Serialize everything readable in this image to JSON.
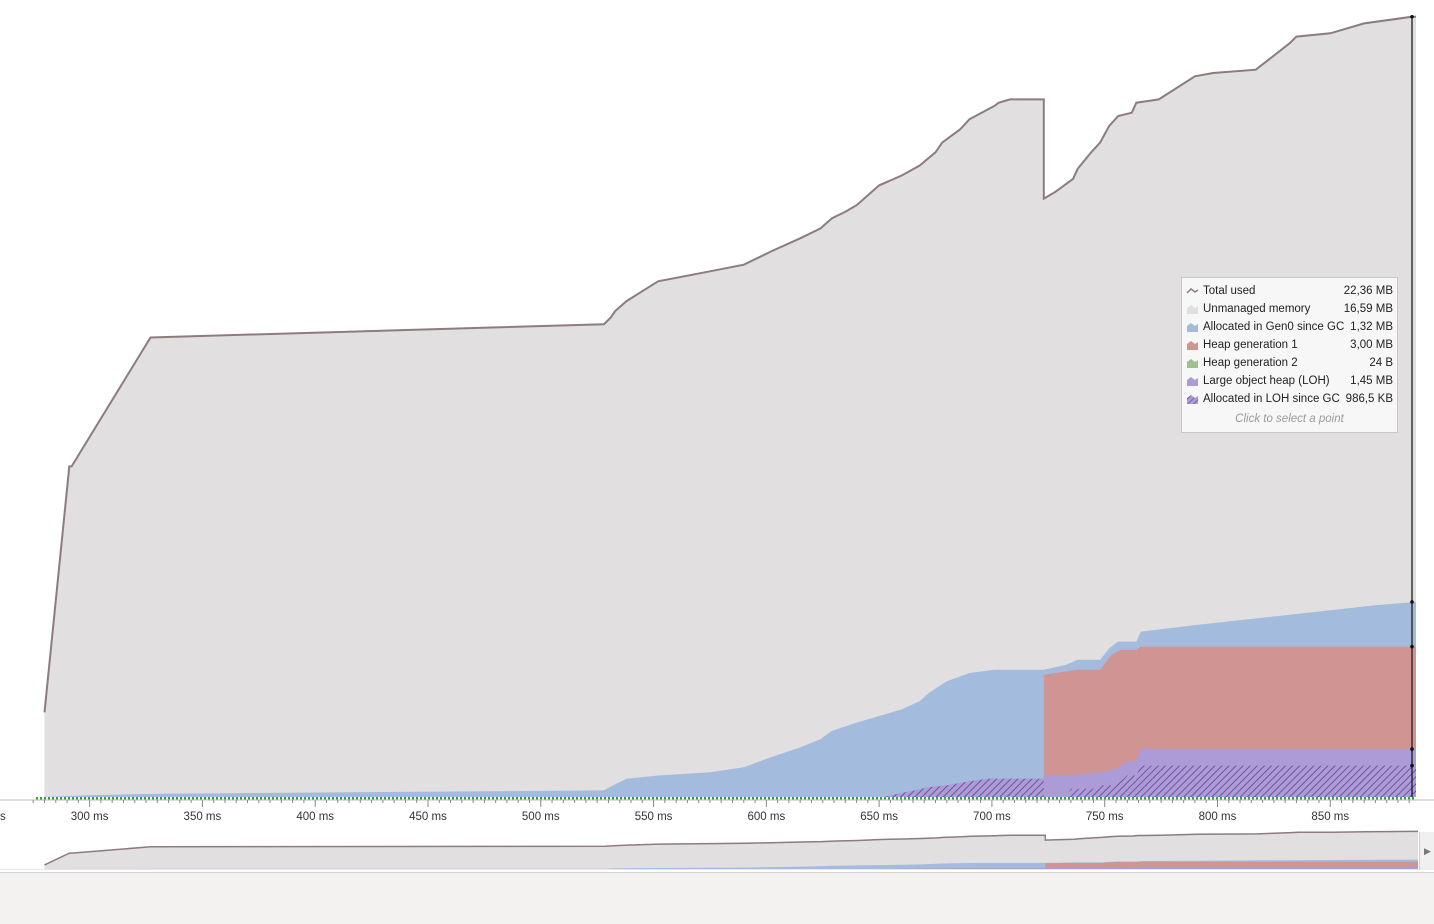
{
  "chart_data": {
    "type": "area",
    "title": "",
    "xlabel": "",
    "ylabel": "",
    "x_unit": "ms",
    "xlim": [
      278,
      888
    ],
    "ylim": [
      0,
      23.2
    ],
    "x_ticks": [
      300,
      350,
      400,
      450,
      500,
      550,
      600,
      650,
      700,
      750,
      800,
      850
    ],
    "x_tick_labels": [
      "300 ms",
      "350 ms",
      "400 ms",
      "450 ms",
      "500 ms",
      "550 ms",
      "600 ms",
      "650 ms",
      "700 ms",
      "750 ms",
      "800 ms",
      "850 ms"
    ],
    "left_edge_label": "s",
    "grid": false,
    "legend_position": "right",
    "total_used": {
      "name": "Total used",
      "color": "#8c7c7e",
      "points": [
        [
          280,
          2.56
        ],
        [
          291,
          10.0
        ],
        [
          292,
          10.0
        ],
        [
          327,
          13.9
        ],
        [
          528,
          14.3
        ],
        [
          531,
          14.5
        ],
        [
          533,
          14.7
        ],
        [
          538,
          15.0
        ],
        [
          545,
          15.3
        ],
        [
          552,
          15.6
        ],
        [
          575,
          15.9
        ],
        [
          590,
          16.1
        ],
        [
          602,
          16.5
        ],
        [
          615,
          16.9
        ],
        [
          624,
          17.2
        ],
        [
          629,
          17.5
        ],
        [
          635,
          17.7
        ],
        [
          640,
          17.9
        ],
        [
          645,
          18.2
        ],
        [
          650,
          18.5
        ],
        [
          660,
          18.8
        ],
        [
          668,
          19.1
        ],
        [
          675,
          19.5
        ],
        [
          678,
          19.8
        ],
        [
          686,
          20.2
        ],
        [
          690,
          20.5
        ],
        [
          701,
          20.9
        ],
        [
          703,
          21.0
        ],
        [
          708,
          21.1
        ],
        [
          723,
          21.1
        ],
        [
          723,
          18.1
        ],
        [
          728,
          18.3
        ],
        [
          736,
          18.7
        ],
        [
          738,
          19.0
        ],
        [
          744,
          19.5
        ],
        [
          748,
          19.8
        ],
        [
          752,
          20.3
        ],
        [
          756,
          20.6
        ],
        [
          762,
          20.7
        ],
        [
          764,
          21.0
        ],
        [
          774,
          21.1
        ],
        [
          790,
          21.8
        ],
        [
          798,
          21.9
        ],
        [
          817,
          22.0
        ],
        [
          832,
          22.8
        ],
        [
          835,
          23.0
        ],
        [
          850,
          23.1
        ],
        [
          865,
          23.4
        ],
        [
          886,
          23.6
        ],
        [
          888,
          23.6
        ]
      ]
    },
    "stacks": {
      "loh_since_gc": {
        "name": "Allocated in LOH since GC",
        "color": "#8a75c0",
        "pattern": "hatch",
        "points": [
          [
            278,
            0
          ],
          [
            652,
            0
          ],
          [
            660,
            0.12
          ],
          [
            666,
            0.2
          ],
          [
            672,
            0.3
          ],
          [
            680,
            0.35
          ],
          [
            688,
            0.45
          ],
          [
            698,
            0.55
          ],
          [
            723,
            0.55
          ],
          [
            723,
            0
          ],
          [
            733,
            0
          ],
          [
            735,
            0.25
          ],
          [
            745,
            0.25
          ],
          [
            748,
            0.35
          ],
          [
            755,
            0.35
          ],
          [
            760,
            0.65
          ],
          [
            764,
            0.65
          ],
          [
            766,
            0.95
          ],
          [
            888,
            0.95
          ]
        ]
      },
      "loh": {
        "name": "Large object heap (LOH)",
        "color": "#ab9bd6",
        "points": [
          [
            278,
            0
          ],
          [
            652,
            0
          ],
          [
            660,
            0.12
          ],
          [
            666,
            0.2
          ],
          [
            672,
            0.3
          ],
          [
            680,
            0.35
          ],
          [
            688,
            0.45
          ],
          [
            698,
            0.55
          ],
          [
            723,
            0.55
          ],
          [
            723,
            0.65
          ],
          [
            733,
            0.65
          ],
          [
            748,
            0.75
          ],
          [
            755,
            0.85
          ],
          [
            759,
            1.05
          ],
          [
            764,
            1.1
          ],
          [
            766,
            1.45
          ],
          [
            888,
            1.45
          ]
        ]
      },
      "gen2": {
        "name": "Heap generation 2",
        "color": "#9fc08e",
        "points": [
          [
            278,
            0
          ],
          [
            888,
            1e-07
          ]
        ]
      },
      "gen1": {
        "name": "Heap generation 1",
        "color": "#d09593",
        "points": [
          [
            278,
            0
          ],
          [
            652,
            0
          ],
          [
            660,
            0.12
          ],
          [
            666,
            0.2
          ],
          [
            672,
            0.3
          ],
          [
            680,
            0.35
          ],
          [
            688,
            0.45
          ],
          [
            698,
            0.55
          ],
          [
            723,
            0.55
          ],
          [
            723,
            3.7
          ],
          [
            733,
            3.8
          ],
          [
            738,
            3.85
          ],
          [
            748,
            3.85
          ],
          [
            753,
            4.3
          ],
          [
            757,
            4.45
          ],
          [
            764,
            4.45
          ],
          [
            766,
            4.55
          ],
          [
            888,
            4.55
          ]
        ]
      },
      "gen0_since_gc": {
        "name": "Allocated in Gen0 since GC",
        "color": "#a3bcdd",
        "points": [
          [
            278,
            0
          ],
          [
            300,
            0.05
          ],
          [
            330,
            0.1
          ],
          [
            528,
            0.2
          ],
          [
            532,
            0.35
          ],
          [
            538,
            0.55
          ],
          [
            552,
            0.65
          ],
          [
            575,
            0.75
          ],
          [
            590,
            0.9
          ],
          [
            602,
            1.2
          ],
          [
            615,
            1.5
          ],
          [
            624,
            1.75
          ],
          [
            629,
            2.0
          ],
          [
            640,
            2.25
          ],
          [
            650,
            2.45
          ],
          [
            660,
            2.65
          ],
          [
            668,
            2.9
          ],
          [
            672,
            3.15
          ],
          [
            680,
            3.5
          ],
          [
            690,
            3.75
          ],
          [
            701,
            3.85
          ],
          [
            703,
            3.85
          ],
          [
            723,
            3.85
          ],
          [
            733,
            4.0
          ],
          [
            738,
            4.15
          ],
          [
            748,
            4.15
          ],
          [
            752,
            4.5
          ],
          [
            756,
            4.7
          ],
          [
            764,
            4.7
          ],
          [
            766,
            5.0
          ],
          [
            790,
            5.2
          ],
          [
            830,
            5.5
          ],
          [
            870,
            5.8
          ],
          [
            888,
            5.9
          ]
        ]
      }
    },
    "legend": [
      {
        "name": "Total used",
        "value": "22,36 MB",
        "color": "#8c7c7e",
        "icon": "line-icon"
      },
      {
        "name": "Unmanaged memory",
        "value": "16,59 MB",
        "color": "#e2dfe0",
        "icon": "area-icon"
      },
      {
        "name": "Allocated in Gen0 since GC",
        "value": "1,32 MB",
        "color": "#a3bcdd",
        "icon": "area-icon"
      },
      {
        "name": "Heap generation 1",
        "value": "3,00 MB",
        "color": "#d09593",
        "icon": "area-icon"
      },
      {
        "name": "Heap generation 2",
        "value": "24 B",
        "color": "#9fc08e",
        "icon": "area-icon"
      },
      {
        "name": "Large object heap (LOH)",
        "value": "1,45 MB",
        "color": "#ab9bd6",
        "icon": "area-icon"
      },
      {
        "name": "Allocated in LOH since GC",
        "value": "986,5 KB",
        "color": "#8a75c0",
        "icon": "hatch-icon"
      }
    ],
    "legend_hint": "Click to select a point",
    "cursor_x": 888,
    "unmanaged_color": "#e2dfe0",
    "gc_timeline_color": "#2fa82f"
  }
}
